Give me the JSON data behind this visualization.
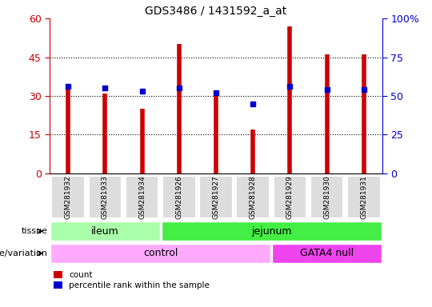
{
  "title": "GDS3486 / 1431592_a_at",
  "samples": [
    "GSM281932",
    "GSM281933",
    "GSM281934",
    "GSM281926",
    "GSM281927",
    "GSM281928",
    "GSM281929",
    "GSM281930",
    "GSM281931"
  ],
  "counts": [
    33,
    31,
    25,
    50,
    31,
    17,
    57,
    46,
    46
  ],
  "percentile_ranks": [
    56,
    55,
    53,
    55,
    52,
    45,
    56,
    54,
    54
  ],
  "ylim_left": [
    0,
    60
  ],
  "ylim_right": [
    0,
    100
  ],
  "yticks_left": [
    0,
    15,
    30,
    45,
    60
  ],
  "yticks_right": [
    0,
    25,
    50,
    75,
    100
  ],
  "ytick_labels_left": [
    "0",
    "15",
    "30",
    "45",
    "60"
  ],
  "ytick_labels_right": [
    "0",
    "25",
    "50",
    "75",
    "100%"
  ],
  "bar_color": "#cc0000",
  "dot_color": "#0000cc",
  "tissue_ileum_indices": [
    0,
    1,
    2
  ],
  "tissue_jejunum_indices": [
    3,
    4,
    5,
    6,
    7,
    8
  ],
  "tissue_ileum_color": "#aaffaa",
  "tissue_jejunum_color": "#44ee44",
  "genotype_control_indices": [
    0,
    1,
    2,
    3,
    4,
    5
  ],
  "genotype_gata4_indices": [
    6,
    7,
    8
  ],
  "genotype_control_color": "#ffaaff",
  "genotype_gata4_color": "#ee44ee",
  "background_color": "#ffffff",
  "plot_bg_color": "#ffffff",
  "sample_box_color": "#dddddd",
  "legend_count_label": "count",
  "legend_pct_label": "percentile rank within the sample",
  "tissue_label": "tissue",
  "genotype_label": "genotype/variation",
  "tissue_ileum_text": "ileum",
  "tissue_jejunum_text": "jejunum",
  "genotype_control_text": "control",
  "genotype_gata4_text": "GATA4 null"
}
